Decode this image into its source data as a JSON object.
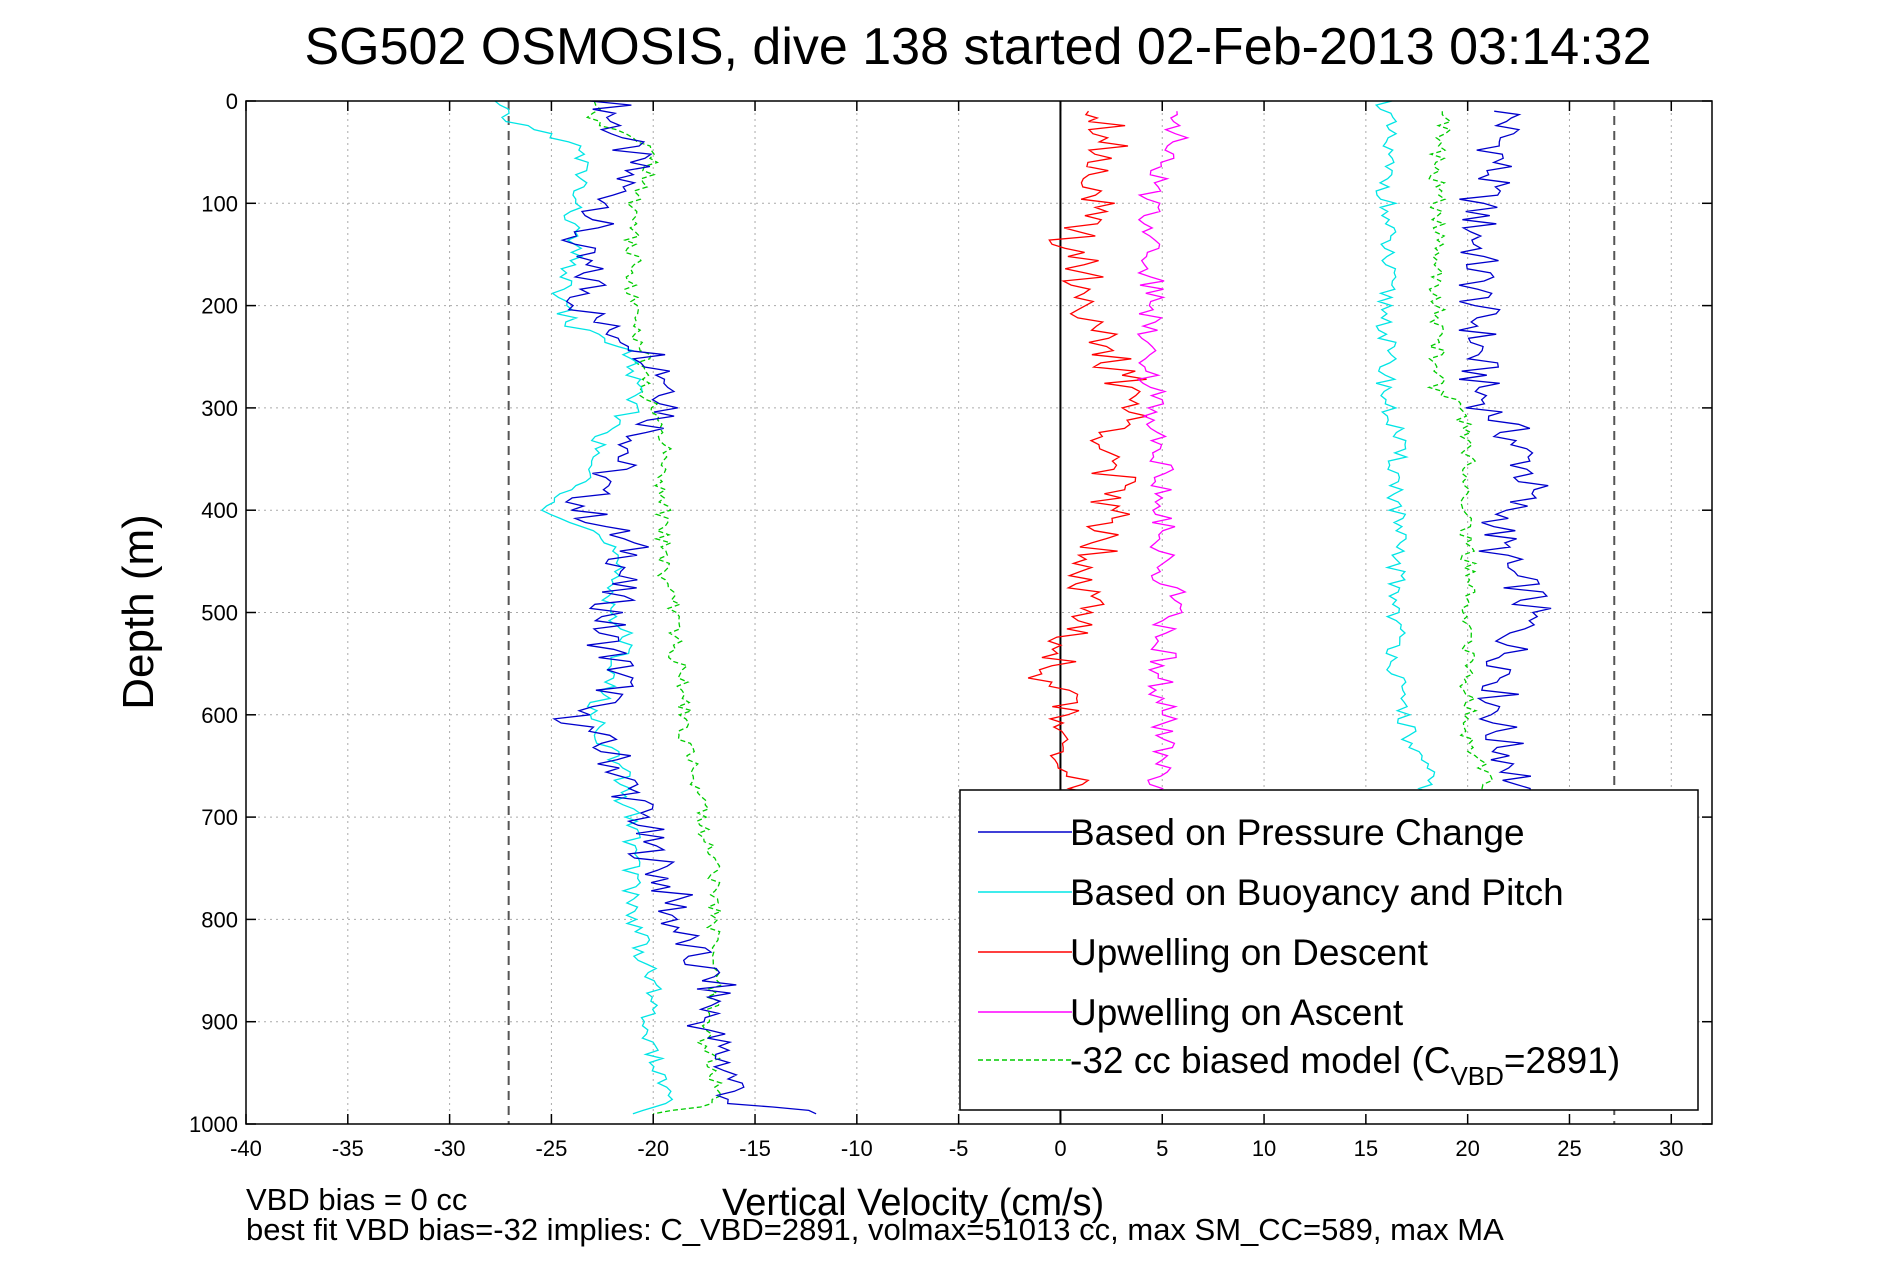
{
  "chart_data": {
    "type": "line",
    "title": "SG502 OSMOSIS, dive 138 started 02-Feb-2013 03:14:32",
    "xlabel": "Vertical Velocity (cm/s)",
    "ylabel": "Depth (m)",
    "xlim": [
      -40,
      32
    ],
    "ylim": [
      0,
      1000
    ],
    "y_reversed": true,
    "grid": true,
    "legend_position": "lower-right",
    "xticks": [
      -40,
      -35,
      -30,
      -25,
      -20,
      -15,
      -10,
      -5,
      0,
      5,
      10,
      15,
      20,
      25,
      30
    ],
    "yticks": [
      0,
      100,
      200,
      300,
      400,
      500,
      600,
      700,
      800,
      900,
      1000
    ],
    "xtick_labels": [
      "-40",
      "-35",
      "-30",
      "-25",
      "-20",
      "-15",
      "-10",
      "-5",
      "0",
      "5",
      "10",
      "15",
      "20",
      "25",
      "30"
    ],
    "ytick_labels": [
      "0",
      "100",
      "200",
      "300",
      "400",
      "500",
      "600",
      "700",
      "800",
      "900",
      "1000"
    ],
    "reference_lines": [
      {
        "x": 0,
        "style": "solid",
        "color": "#000000"
      },
      {
        "x": -27.1,
        "style": "dashed",
        "color": "#555555"
      },
      {
        "x": 27.2,
        "style": "dashed",
        "color": "#555555"
      }
    ],
    "series": [
      {
        "name": "Based on Pressure Change",
        "color": "#0000cc",
        "style": "solid",
        "descent": {
          "depth": [
            0,
            20,
            40,
            60,
            80,
            100,
            120,
            140,
            160,
            180,
            200,
            220,
            240,
            260,
            280,
            300,
            320,
            340,
            360,
            380,
            400,
            420,
            440,
            460,
            480,
            500,
            520,
            540,
            560,
            580,
            600,
            620,
            640,
            660,
            680,
            700,
            720,
            740,
            760,
            780,
            800,
            820,
            840,
            860,
            880,
            900,
            920,
            940,
            960,
            980,
            990
          ],
          "velocity": [
            -22,
            -22,
            -21.5,
            -21,
            -21.5,
            -22,
            -23,
            -24,
            -23.5,
            -23,
            -23.5,
            -22.5,
            -20.5,
            -19.5,
            -19,
            -19,
            -20,
            -21,
            -22,
            -23,
            -23.5,
            -22,
            -21,
            -21.5,
            -22,
            -22,
            -22.5,
            -22,
            -21.5,
            -22,
            -24,
            -23,
            -22,
            -21.5,
            -21,
            -20.5,
            -20.5,
            -20,
            -19.5,
            -19,
            -19,
            -18.5,
            -18,
            -17,
            -17,
            -17.5,
            -17,
            -16.5,
            -16,
            -16,
            -12
          ]
        },
        "ascent": {
          "depth": [
            10,
            20,
            40,
            60,
            80,
            100,
            120,
            140,
            160,
            180,
            200,
            220,
            240,
            260,
            280,
            300,
            320,
            340,
            360,
            380,
            400,
            420,
            440,
            460,
            480,
            500,
            520,
            540,
            560,
            580,
            600,
            620,
            640,
            660,
            680
          ],
          "velocity": [
            22,
            22,
            21.5,
            21.5,
            21,
            20.5,
            20.5,
            20.5,
            20.5,
            20.5,
            20.5,
            20.5,
            20.5,
            20.5,
            20.5,
            21,
            22,
            22.5,
            23,
            23,
            22,
            21.5,
            21.5,
            22,
            23,
            23,
            22.5,
            22,
            22,
            21.5,
            21.5,
            21.5,
            22,
            22.5,
            22
          ]
        }
      },
      {
        "name": "Based on Buoyancy and Pitch",
        "color": "#00e5e5",
        "style": "solid",
        "descent": {
          "depth": [
            0,
            20,
            40,
            60,
            80,
            100,
            120,
            140,
            160,
            180,
            200,
            220,
            240,
            260,
            280,
            300,
            320,
            340,
            360,
            380,
            400,
            420,
            440,
            460,
            480,
            500,
            520,
            540,
            560,
            580,
            600,
            620,
            640,
            660,
            680,
            700,
            720,
            740,
            760,
            780,
            800,
            820,
            840,
            860,
            880,
            900,
            920,
            940,
            960,
            980,
            990
          ],
          "velocity": [
            -28,
            -27,
            -24,
            -23.5,
            -23.5,
            -24,
            -24,
            -24,
            -24,
            -24.5,
            -24.5,
            -24,
            -21.5,
            -21,
            -21,
            -21,
            -22,
            -23,
            -23,
            -24,
            -25,
            -23,
            -22,
            -22,
            -22,
            -22,
            -21.5,
            -21.5,
            -22,
            -22.5,
            -23,
            -22.5,
            -22,
            -21.5,
            -21.5,
            -21,
            -21,
            -21,
            -21,
            -21,
            -21,
            -20.5,
            -20.5,
            -20,
            -20,
            -20.5,
            -20,
            -20,
            -19.5,
            -19.5,
            -21
          ]
        },
        "ascent": {
          "depth": [
            0,
            20,
            40,
            60,
            80,
            100,
            120,
            140,
            160,
            180,
            200,
            220,
            240,
            260,
            280,
            300,
            320,
            340,
            360,
            380,
            400,
            420,
            440,
            460,
            480,
            500,
            520,
            540,
            560,
            580,
            600,
            620,
            640,
            660,
            680
          ],
          "velocity": [
            16,
            16,
            16,
            16,
            16,
            16,
            16,
            16,
            16,
            16,
            16,
            16,
            16,
            16,
            16,
            16,
            16.5,
            16.5,
            16.5,
            16.5,
            16.5,
            16.5,
            16.5,
            16.5,
            16.5,
            16.5,
            16.5,
            16.5,
            16.5,
            16.5,
            17,
            17,
            17.5,
            18,
            18
          ]
        }
      },
      {
        "name": "Upwelling on Descent",
        "color": "#ff0000",
        "style": "solid",
        "data": {
          "depth": [
            10,
            20,
            40,
            60,
            80,
            100,
            120,
            140,
            160,
            180,
            200,
            220,
            240,
            260,
            280,
            300,
            320,
            340,
            360,
            380,
            400,
            420,
            440,
            460,
            480,
            500,
            520,
            540,
            560,
            580,
            600,
            620,
            640,
            660,
            680
          ],
          "velocity": [
            2,
            2.5,
            2.5,
            2,
            2,
            1.5,
            1,
            0.5,
            1.5,
            1,
            1.5,
            1.5,
            2,
            2.5,
            3.5,
            3.5,
            3,
            2.5,
            2.5,
            2.5,
            2.5,
            2.5,
            2,
            1.5,
            1.5,
            1,
            0.5,
            0,
            -0.5,
            0,
            0,
            0.5,
            0.5,
            0.5,
            0.5
          ]
        }
      },
      {
        "name": "Upwelling on Ascent",
        "color": "#ff00ff",
        "style": "solid",
        "data": {
          "depth": [
            10,
            20,
            40,
            60,
            80,
            100,
            120,
            140,
            160,
            180,
            200,
            220,
            240,
            260,
            280,
            300,
            320,
            340,
            360,
            380,
            400,
            420,
            440,
            460,
            480,
            500,
            520,
            540,
            560,
            580,
            600,
            620,
            640,
            660,
            680
          ],
          "velocity": [
            6,
            6,
            5.5,
            5,
            4.5,
            4.5,
            4.5,
            4.5,
            4.5,
            4.5,
            4.5,
            4.5,
            4.5,
            4.5,
            4.5,
            4.5,
            5,
            5,
            5,
            5,
            5,
            5,
            5,
            5,
            5.5,
            5.5,
            5,
            5,
            5,
            5,
            5,
            5,
            5,
            5,
            5
          ]
        }
      },
      {
        "name": "-32 cc biased model (C_VBD=2891)",
        "color": "#00cc00",
        "style": "dashed",
        "descent": {
          "depth": [
            0,
            20,
            40,
            60,
            80,
            100,
            120,
            140,
            160,
            180,
            200,
            220,
            240,
            260,
            280,
            300,
            320,
            340,
            360,
            380,
            400,
            420,
            440,
            460,
            480,
            500,
            520,
            540,
            560,
            580,
            600,
            620,
            640,
            660,
            680,
            700,
            720,
            740,
            760,
            780,
            800,
            820,
            840,
            860,
            880,
            900,
            920,
            940,
            960,
            980,
            990
          ],
          "velocity": [
            -23,
            -23,
            -20.5,
            -20,
            -20.5,
            -21,
            -21,
            -21,
            -21,
            -21,
            -21,
            -21,
            -20.5,
            -20.5,
            -20.5,
            -20,
            -19.5,
            -19.5,
            -19.5,
            -19.5,
            -19.5,
            -19.5,
            -19.5,
            -19.5,
            -19,
            -19,
            -19,
            -19,
            -18.5,
            -18.5,
            -18.5,
            -18.5,
            -18,
            -18,
            -17.5,
            -17.5,
            -17.5,
            -17,
            -17,
            -17,
            -17,
            -17,
            -17,
            -17,
            -17,
            -17.5,
            -17.5,
            -17,
            -17,
            -17,
            -20
          ]
        },
        "ascent": {
          "depth": [
            10,
            20,
            40,
            60,
            80,
            100,
            120,
            140,
            160,
            180,
            200,
            220,
            240,
            260,
            280,
            300,
            320,
            340,
            360,
            380,
            400,
            420,
            440,
            460,
            480,
            500,
            520,
            540,
            560,
            580,
            600,
            620,
            640,
            660,
            680
          ],
          "velocity": [
            19,
            19,
            18.5,
            18.5,
            18.5,
            18.5,
            18.5,
            18.5,
            18.5,
            18.5,
            18.5,
            18.5,
            18.5,
            18.5,
            18.5,
            19.5,
            20,
            20,
            20,
            20,
            20,
            20,
            20,
            20,
            20,
            20,
            20,
            20,
            20,
            20,
            20,
            20,
            20.5,
            21,
            21
          ]
        }
      }
    ],
    "legend": {
      "entries": [
        {
          "label": "Based on Pressure Change",
          "color": "#0000cc",
          "style": "solid"
        },
        {
          "label": "Based on Buoyancy and Pitch",
          "color": "#00e5e5",
          "style": "solid"
        },
        {
          "label": "Upwelling on Descent",
          "color": "#ff0000",
          "style": "solid"
        },
        {
          "label": "Upwelling on Ascent",
          "color": "#ff00ff",
          "style": "solid"
        },
        {
          "label": "-32 cc biased model (C",
          "sub": "VBD",
          "suffix": "=2891)",
          "color": "#00cc00",
          "style": "dashed"
        }
      ]
    },
    "footer": {
      "line1": "VBD bias = 0 cc",
      "line2": "best fit VBD bias=-32 implies: C_VBD=2891, volmax=51013 cc, max SM_CC=589, max MA"
    }
  }
}
